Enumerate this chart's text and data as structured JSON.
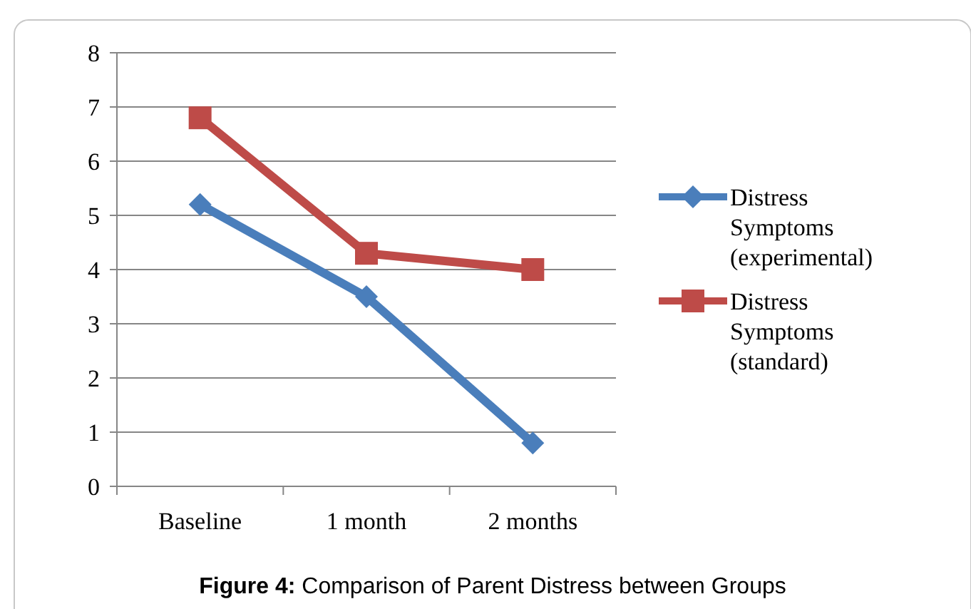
{
  "chart_data": {
    "type": "line",
    "title": "Figure 4: Comparison of Parent Distress between Groups",
    "categories": [
      "Baseline",
      "1 month",
      "2 months"
    ],
    "series": [
      {
        "name": "Distress Symptoms (experimental)",
        "color": "#4a7ebb",
        "values": [
          5.2,
          3.5,
          0.8
        ],
        "marker": "diamond"
      },
      {
        "name": "Distress Symptoms (standard)",
        "color": "#be4b48",
        "values": [
          6.8,
          4.3,
          4.0
        ],
        "marker": "square"
      }
    ],
    "ylim": [
      0,
      8
    ],
    "yticks": [
      0,
      1,
      2,
      3,
      4,
      5,
      6,
      7,
      8
    ],
    "grid": "y",
    "legend": "right"
  }
}
